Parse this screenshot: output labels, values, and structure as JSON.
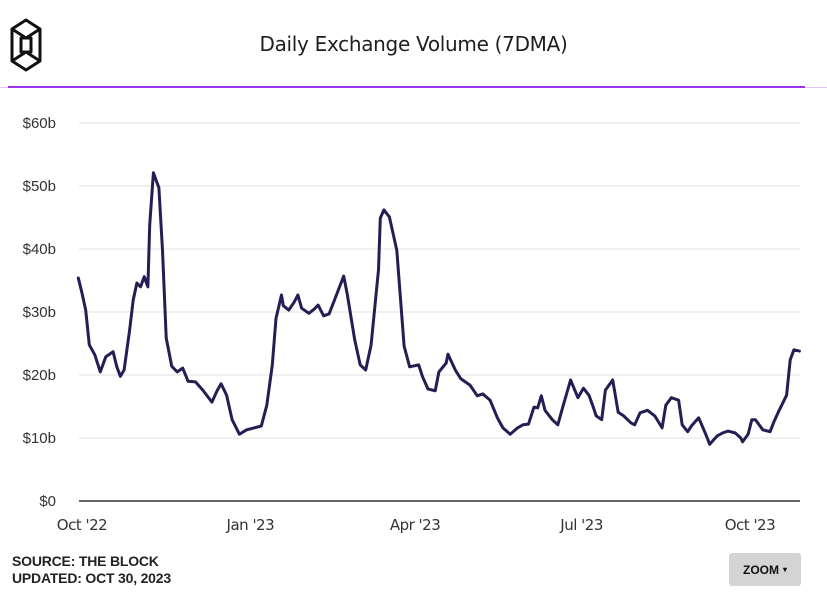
{
  "header": {
    "logo": "the-block-logo",
    "title": "Daily Exchange Volume (7DMA)"
  },
  "footer": {
    "source": "SOURCE: THE BLOCK",
    "updated": "UPDATED: OCT 30, 2023",
    "zoom_label": "ZOOM",
    "zoom_caret": "▾"
  },
  "colors": {
    "line": "#231f54",
    "accent_rule": "#9933ee",
    "grid": "#ebebeb",
    "axis": "#333333"
  },
  "chart_data": {
    "type": "line",
    "title": "Daily Exchange Volume (7DMA)",
    "xlabel": "",
    "ylabel": "",
    "x_units": "days since Oct 1, 2022",
    "xlim": [
      -2,
      392
    ],
    "ylim": [
      0,
      60
    ],
    "grid": true,
    "legend": "none",
    "y_ticks": [
      {
        "value": 0,
        "label": "$0"
      },
      {
        "value": 10,
        "label": "$10b"
      },
      {
        "value": 20,
        "label": "$20b"
      },
      {
        "value": 30,
        "label": "$30b"
      },
      {
        "value": 40,
        "label": "$40b"
      },
      {
        "value": 50,
        "label": "$50b"
      },
      {
        "value": 60,
        "label": "$60b"
      }
    ],
    "x_ticks": [
      {
        "value": 0,
        "label": "Oct '22"
      },
      {
        "value": 92,
        "label": "Jan '23"
      },
      {
        "value": 182,
        "label": "Apr '23"
      },
      {
        "value": 273,
        "label": "Jul '23"
      },
      {
        "value": 365,
        "label": "Oct '23"
      }
    ],
    "series": [
      {
        "name": "Daily Exchange Volume (7DMA, $b)",
        "points": [
          [
            -2,
            35.4
          ],
          [
            0,
            33.0
          ],
          [
            2,
            30.3
          ],
          [
            4,
            24.8
          ],
          [
            7,
            23.2
          ],
          [
            10,
            20.5
          ],
          [
            13,
            22.9
          ],
          [
            17,
            23.7
          ],
          [
            19,
            21.3
          ],
          [
            21,
            19.8
          ],
          [
            23,
            20.8
          ],
          [
            26,
            27.1
          ],
          [
            28,
            31.9
          ],
          [
            30,
            34.6
          ],
          [
            32,
            34.0
          ],
          [
            34,
            35.6
          ],
          [
            36,
            34.0
          ],
          [
            37,
            43.8
          ],
          [
            39,
            52.1
          ],
          [
            42,
            49.7
          ],
          [
            44,
            39.8
          ],
          [
            46,
            25.9
          ],
          [
            49,
            21.4
          ],
          [
            52,
            20.5
          ],
          [
            55,
            21.1
          ],
          [
            58,
            19.0
          ],
          [
            62,
            18.9
          ],
          [
            66,
            17.6
          ],
          [
            71,
            15.7
          ],
          [
            74,
            17.6
          ],
          [
            76,
            18.6
          ],
          [
            79,
            16.8
          ],
          [
            82,
            12.9
          ],
          [
            86,
            10.6
          ],
          [
            90,
            11.3
          ],
          [
            98,
            11.9
          ],
          [
            101,
            15.2
          ],
          [
            104,
            21.6
          ],
          [
            106,
            29.0
          ],
          [
            109,
            32.7
          ],
          [
            110,
            31.0
          ],
          [
            113,
            30.3
          ],
          [
            116,
            31.6
          ],
          [
            118,
            32.7
          ],
          [
            120,
            30.6
          ],
          [
            124,
            29.8
          ],
          [
            127,
            30.5
          ],
          [
            129,
            31.1
          ],
          [
            132,
            29.4
          ],
          [
            135,
            29.7
          ],
          [
            138,
            31.9
          ],
          [
            143,
            35.7
          ],
          [
            145,
            32.7
          ],
          [
            149,
            25.6
          ],
          [
            152,
            21.6
          ],
          [
            155,
            20.8
          ],
          [
            158,
            24.8
          ],
          [
            162,
            36.7
          ],
          [
            163,
            44.9
          ],
          [
            165,
            46.2
          ],
          [
            168,
            45.1
          ],
          [
            172,
            39.8
          ],
          [
            176,
            24.6
          ],
          [
            179,
            21.3
          ],
          [
            184,
            21.6
          ],
          [
            186,
            19.8
          ],
          [
            189,
            17.8
          ],
          [
            193,
            17.5
          ],
          [
            195,
            20.5
          ],
          [
            199,
            21.9
          ],
          [
            200,
            23.3
          ],
          [
            204,
            20.8
          ],
          [
            207,
            19.4
          ],
          [
            212,
            18.4
          ],
          [
            216,
            16.7
          ],
          [
            219,
            17.0
          ],
          [
            223,
            16.0
          ],
          [
            227,
            13.2
          ],
          [
            230,
            11.6
          ],
          [
            234,
            10.6
          ],
          [
            238,
            11.6
          ],
          [
            241,
            12.1
          ],
          [
            244,
            12.2
          ],
          [
            247,
            14.9
          ],
          [
            249,
            14.8
          ],
          [
            251,
            16.7
          ],
          [
            253,
            14.4
          ],
          [
            257,
            12.9
          ],
          [
            260,
            12.1
          ],
          [
            263,
            15.2
          ],
          [
            267,
            19.2
          ],
          [
            271,
            16.4
          ],
          [
            274,
            17.9
          ],
          [
            277,
            16.8
          ],
          [
            279,
            15.2
          ],
          [
            281,
            13.5
          ],
          [
            284,
            12.9
          ],
          [
            286,
            17.6
          ],
          [
            290,
            19.2
          ],
          [
            293,
            14.1
          ],
          [
            296,
            13.5
          ],
          [
            300,
            12.4
          ],
          [
            302,
            12.1
          ],
          [
            305,
            14.0
          ],
          [
            309,
            14.4
          ],
          [
            313,
            13.5
          ],
          [
            317,
            11.6
          ],
          [
            319,
            15.2
          ],
          [
            322,
            16.4
          ],
          [
            326,
            16.0
          ],
          [
            328,
            12.1
          ],
          [
            331,
            11.0
          ],
          [
            333,
            11.9
          ],
          [
            337,
            13.2
          ],
          [
            341,
            10.5
          ],
          [
            343,
            9.0
          ],
          [
            347,
            10.3
          ],
          [
            350,
            10.8
          ],
          [
            353,
            11.1
          ],
          [
            357,
            10.8
          ],
          [
            360,
            10.0
          ],
          [
            361,
            9.4
          ],
          [
            364,
            10.6
          ],
          [
            366,
            12.9
          ],
          [
            368,
            12.9
          ],
          [
            372,
            11.3
          ],
          [
            376,
            11.0
          ],
          [
            378,
            12.5
          ],
          [
            381,
            14.4
          ],
          [
            385,
            16.8
          ],
          [
            387,
            22.4
          ],
          [
            389,
            24.0
          ],
          [
            392,
            23.8
          ]
        ]
      }
    ]
  }
}
